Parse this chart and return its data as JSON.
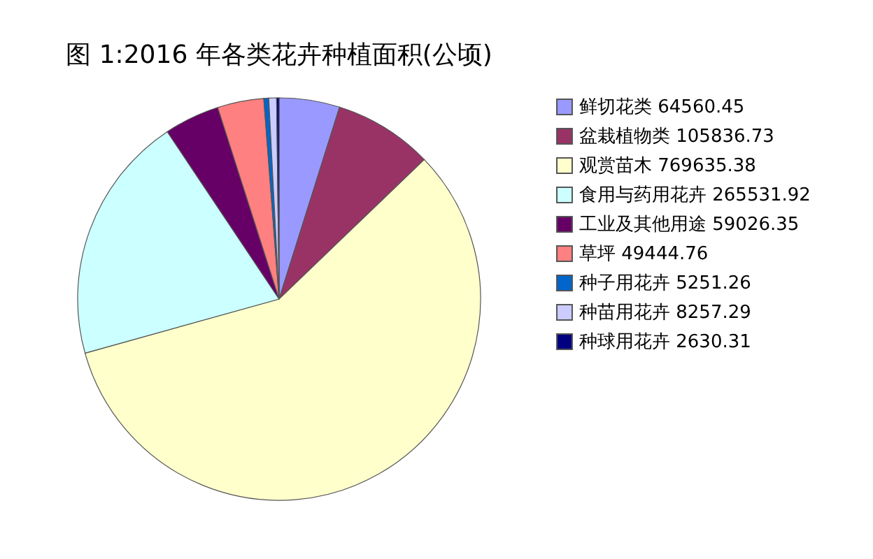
{
  "chart_data": {
    "type": "pie",
    "title": "图 1:2016 年各类花卉种植面积(公顷)",
    "categories": [
      "鲜切花类 64560.45",
      "盆栽植物类 105836.73",
      "观赏苗木 769635.38",
      "食用与药用花卉 265531.92",
      "工业及其他用途 59026.35",
      "草坪 49444.76",
      "种子用花卉 5251.26",
      "种苗用花卉 8257.29",
      "种球用花卉 2630.31"
    ],
    "values": [
      64560.45,
      105836.73,
      769635.38,
      265531.92,
      59026.35,
      49444.76,
      5251.26,
      8257.29,
      2630.31
    ],
    "colors": [
      "#9999ff",
      "#993366",
      "#ffffcc",
      "#ccffff",
      "#660066",
      "#ff8080",
      "#0066cc",
      "#ccccff",
      "#000080"
    ],
    "legend": "right"
  }
}
